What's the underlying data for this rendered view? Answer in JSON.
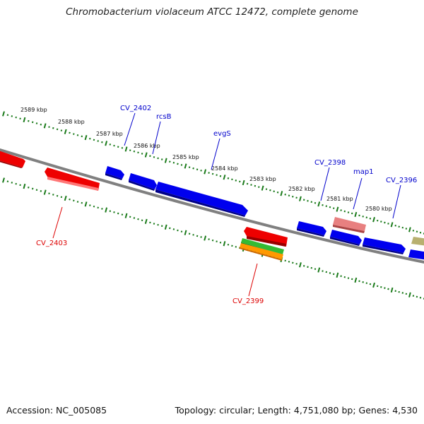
{
  "title": "Chromobacterium violaceum ATCC 12472, complete genome",
  "footer": {
    "accession": "Accession: NC_005085",
    "summary": "Topology: circular; Length: 4,751,080 bp; Genes: 4,530"
  },
  "scale_labels": [
    "2589 kbp",
    "2588 kbp",
    "2587 kbp",
    "2586 kbp",
    "2585 kbp",
    "2584 kbp",
    "2583 kbp",
    "2582 kbp",
    "2581 kbp",
    "2580 kbp"
  ],
  "gene_labels": {
    "forward": [
      "CV_2402",
      "rcsB",
      "evgS",
      "CV_2398",
      "map1",
      "CV_2396"
    ],
    "reverse": [
      "CV_2403",
      "CV_2399"
    ]
  },
  "colors": {
    "forward_gene": "#0000ee",
    "reverse_gene": "#ee0000",
    "pseudo_gene": "#e88080",
    "rrna_green": "#33bb33",
    "rrna_orange": "#ff9900",
    "other_gene": "#b8b070",
    "backbone": "#808080",
    "tick": "#1a7a1a",
    "forward_label": "#0000cc",
    "reverse_label": "#dd0000"
  }
}
